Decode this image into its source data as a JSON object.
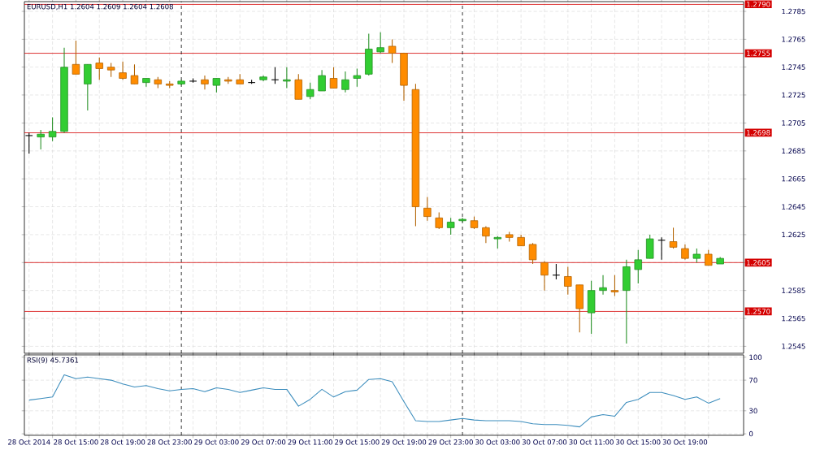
{
  "chart_data": [
    {
      "type": "candlestick",
      "title": "EURUSD,H1  1.2604 1.2609 1.2604 1.2608",
      "x": [
        "2014-10-28T11:00",
        "2014-10-28T12:00",
        "2014-10-28T13:00",
        "2014-10-28T14:00",
        "2014-10-28T15:00",
        "2014-10-28T16:00",
        "2014-10-28T17:00",
        "2014-10-28T18:00",
        "2014-10-28T19:00",
        "2014-10-28T20:00",
        "2014-10-28T21:00",
        "2014-10-28T22:00",
        "2014-10-28T23:00",
        "2014-10-29T00:00",
        "2014-10-29T01:00",
        "2014-10-29T02:00",
        "2014-10-29T03:00",
        "2014-10-29T04:00",
        "2014-10-29T05:00",
        "2014-10-29T06:00",
        "2014-10-29T07:00",
        "2014-10-29T08:00",
        "2014-10-29T09:00",
        "2014-10-29T10:00",
        "2014-10-29T11:00",
        "2014-10-29T12:00",
        "2014-10-29T13:00",
        "2014-10-29T14:00",
        "2014-10-29T15:00",
        "2014-10-29T16:00",
        "2014-10-29T17:00",
        "2014-10-29T18:00",
        "2014-10-29T19:00",
        "2014-10-29T20:00",
        "2014-10-29T21:00",
        "2014-10-29T22:00",
        "2014-10-29T23:00",
        "2014-10-30T00:00",
        "2014-10-30T01:00",
        "2014-10-30T02:00",
        "2014-10-30T03:00",
        "2014-10-30T04:00",
        "2014-10-30T05:00",
        "2014-10-30T06:00",
        "2014-10-30T07:00",
        "2014-10-30T08:00",
        "2014-10-30T09:00",
        "2014-10-30T10:00",
        "2014-10-30T11:00",
        "2014-10-30T12:00",
        "2014-10-30T13:00",
        "2014-10-30T14:00",
        "2014-10-30T15:00",
        "2014-10-30T16:00",
        "2014-10-30T17:00",
        "2014-10-30T18:00",
        "2014-10-30T19:00",
        "2014-10-30T20:00",
        "2014-10-30T21:00",
        "2014-10-30T22:00"
      ],
      "ohlc": [
        [
          1.2696,
          1.2698,
          1.2683,
          1.2696
        ],
        [
          1.2695,
          1.27,
          1.2686,
          1.2697
        ],
        [
          1.2695,
          1.2709,
          1.2692,
          1.2699
        ],
        [
          1.2699,
          1.2759,
          1.2698,
          1.2745
        ],
        [
          1.2747,
          1.2764,
          1.274,
          1.274
        ],
        [
          1.2733,
          1.2747,
          1.2714,
          1.2747
        ],
        [
          1.2748,
          1.2752,
          1.2736,
          1.2744
        ],
        [
          1.2745,
          1.2748,
          1.2738,
          1.2743
        ],
        [
          1.2741,
          1.2749,
          1.2736,
          1.2737
        ],
        [
          1.2739,
          1.2747,
          1.2733,
          1.2733
        ],
        [
          1.2734,
          1.2737,
          1.2731,
          1.2737
        ],
        [
          1.2736,
          1.2738,
          1.273,
          1.2733
        ],
        [
          1.2733,
          1.2735,
          1.273,
          1.2732
        ],
        [
          1.2733,
          1.2736,
          1.2732,
          1.2735
        ],
        [
          1.2735,
          1.2737,
          1.2734,
          1.2735
        ],
        [
          1.2736,
          1.2739,
          1.2729,
          1.2733
        ],
        [
          1.2732,
          1.2737,
          1.2727,
          1.2737
        ],
        [
          1.2736,
          1.2738,
          1.2733,
          1.2735
        ],
        [
          1.2736,
          1.274,
          1.2733,
          1.2733
        ],
        [
          1.2734,
          1.2736,
          1.2733,
          1.2734
        ],
        [
          1.2736,
          1.2739,
          1.2735,
          1.2738
        ],
        [
          1.2736,
          1.2745,
          1.2733,
          1.2736
        ],
        [
          1.2735,
          1.2745,
          1.273,
          1.2736
        ],
        [
          1.2736,
          1.274,
          1.2722,
          1.2722
        ],
        [
          1.2724,
          1.2734,
          1.2722,
          1.2729
        ],
        [
          1.2728,
          1.2743,
          1.2728,
          1.2739
        ],
        [
          1.2737,
          1.2745,
          1.273,
          1.273
        ],
        [
          1.2729,
          1.2742,
          1.2727,
          1.2736
        ],
        [
          1.2737,
          1.2744,
          1.2731,
          1.2739
        ],
        [
          1.274,
          1.2769,
          1.2739,
          1.2758
        ],
        [
          1.2756,
          1.277,
          1.2755,
          1.2759
        ],
        [
          1.276,
          1.2765,
          1.2748,
          1.2755
        ],
        [
          1.2755,
          1.2755,
          1.2721,
          1.2732
        ],
        [
          1.2729,
          1.2733,
          1.2631,
          1.2645
        ],
        [
          1.2644,
          1.2652,
          1.2635,
          1.2638
        ],
        [
          1.2637,
          1.2641,
          1.2629,
          1.263
        ],
        [
          1.263,
          1.2637,
          1.2625,
          1.2634
        ],
        [
          1.2635,
          1.2637,
          1.2634,
          1.2636
        ],
        [
          1.2635,
          1.2638,
          1.2629,
          1.263
        ],
        [
          1.263,
          1.2631,
          1.2619,
          1.2624
        ],
        [
          1.2622,
          1.2624,
          1.2615,
          1.2623
        ],
        [
          1.2625,
          1.2627,
          1.262,
          1.2623
        ],
        [
          1.2623,
          1.2625,
          1.2617,
          1.2617
        ],
        [
          1.2618,
          1.2619,
          1.2604,
          1.2607
        ],
        [
          1.2605,
          1.2606,
          1.2585,
          1.2596
        ],
        [
          1.2596,
          1.2604,
          1.2593,
          1.2596
        ],
        [
          1.2595,
          1.2602,
          1.2582,
          1.2588
        ],
        [
          1.2589,
          1.2589,
          1.2555,
          1.2572
        ],
        [
          1.2569,
          1.2592,
          1.2554,
          1.2585
        ],
        [
          1.2585,
          1.2596,
          1.2582,
          1.2587
        ],
        [
          1.2585,
          1.2596,
          1.2581,
          1.2584
        ],
        [
          1.2585,
          1.2607,
          1.2547,
          1.2602
        ],
        [
          1.26,
          1.2614,
          1.259,
          1.2607
        ],
        [
          1.2608,
          1.2625,
          1.2608,
          1.2622
        ],
        [
          1.2621,
          1.2623,
          1.2607,
          1.2621
        ],
        [
          1.262,
          1.263,
          1.2615,
          1.2616
        ],
        [
          1.2615,
          1.2618,
          1.2607,
          1.2608
        ],
        [
          1.2608,
          1.2615,
          1.2605,
          1.2611
        ],
        [
          1.2611,
          1.2614,
          1.2603,
          1.2603
        ],
        [
          1.2604,
          1.2609,
          1.2604,
          1.2608
        ]
      ],
      "colors": [
        "#000000",
        "#32cd32",
        "#32cd32",
        "#32cd32",
        "#ff8c00",
        "#32cd32",
        "#ff8c00",
        "#ff8c00",
        "#ff8c00",
        "#ff8c00",
        "#32cd32",
        "#ff8c00",
        "#ff8c00",
        "#32cd32",
        "#000000",
        "#ff8c00",
        "#32cd32",
        "#ff8c00",
        "#ff8c00",
        "#000000",
        "#32cd32",
        "#000000",
        "#32cd32",
        "#ff8c00",
        "#32cd32",
        "#32cd32",
        "#ff8c00",
        "#32cd32",
        "#32cd32",
        "#32cd32",
        "#32cd32",
        "#ff8c00",
        "#ff8c00",
        "#ff8c00",
        "#ff8c00",
        "#ff8c00",
        "#32cd32",
        "#32cd32",
        "#ff8c00",
        "#ff8c00",
        "#32cd32",
        "#ff8c00",
        "#ff8c00",
        "#ff8c00",
        "#ff8c00",
        "#000000",
        "#ff8c00",
        "#ff8c00",
        "#32cd32",
        "#32cd32",
        "#ff8c00",
        "#32cd32",
        "#32cd32",
        "#32cd32",
        "#000000",
        "#ff8c00",
        "#ff8c00",
        "#32cd32",
        "#ff8c00",
        "#32cd32"
      ],
      "xlim": [
        "2014-10-28T10:36",
        "2014-10-31T00:00"
      ],
      "xticks": [
        {
          "value": "2014-10-28T11:00",
          "label": null
        },
        {
          "value": "2014-10-28T13:00",
          "label": null
        },
        {
          "value": "2014-10-28T15:00",
          "label": null
        },
        {
          "value": "2014-10-28T17:00",
          "label": null
        },
        {
          "value": "2014-10-28T19:00",
          "label": null
        },
        {
          "value": "2014-10-28T21:00",
          "label": null
        },
        {
          "value": "2014-10-28T23:00",
          "label": null
        },
        {
          "value": "2014-10-29T01:00",
          "label": null
        },
        {
          "value": "2014-10-29T03:00",
          "label": null
        },
        {
          "value": "2014-10-29T05:00",
          "label": null
        },
        {
          "value": "2014-10-29T07:00",
          "label": null
        },
        {
          "value": "2014-10-29T09:00",
          "label": null
        },
        {
          "value": "2014-10-29T11:00",
          "label": null
        },
        {
          "value": "2014-10-29T13:00",
          "label": null
        },
        {
          "value": "2014-10-29T15:00",
          "label": null
        },
        {
          "value": "2014-10-29T17:00",
          "label": null
        },
        {
          "value": "2014-10-29T19:00",
          "label": null
        },
        {
          "value": "2014-10-29T21:00",
          "label": null
        },
        {
          "value": "2014-10-29T23:00",
          "label": null
        },
        {
          "value": "2014-10-30T01:00",
          "label": null
        },
        {
          "value": "2014-10-30T03:00",
          "label": null
        },
        {
          "value": "2014-10-30T05:00",
          "label": null
        },
        {
          "value": "2014-10-30T07:00",
          "label": null
        },
        {
          "value": "2014-10-30T09:00",
          "label": null
        },
        {
          "value": "2014-10-30T11:00",
          "label": null
        },
        {
          "value": "2014-10-30T13:00",
          "label": null
        },
        {
          "value": "2014-10-30T15:00",
          "label": null
        },
        {
          "value": "2014-10-30T17:00",
          "label": null
        },
        {
          "value": "2014-10-30T19:00",
          "label": null
        },
        {
          "value": "2014-10-30T21:00",
          "label": null
        }
      ],
      "ylim": [
        1.254,
        1.2792
      ],
      "yticks": [
        1.2545,
        1.2565,
        1.2585,
        {
          "value": 1.2605,
          "label": null
        },
        1.2625,
        1.2645,
        1.2665,
        1.2685,
        1.2705,
        1.2725,
        1.2745,
        1.2765,
        1.2785
      ],
      "grid": true,
      "tick_labels": "y",
      "ref_lines": [
        {
          "axis": "y",
          "value": 1.279,
          "label": "1.2790",
          "color": "#d40000"
        },
        {
          "axis": "y",
          "value": 1.2755,
          "label": "1.2755",
          "color": "#d40000"
        },
        {
          "axis": "y",
          "value": 1.2698,
          "label": "1.2698",
          "color": "#d40000"
        },
        {
          "axis": "y",
          "value": 1.2605,
          "label": "1.2605",
          "color": "#d40000"
        },
        {
          "axis": "y",
          "value": 1.257,
          "label": "1.2570",
          "color": "#d40000"
        },
        {
          "axis": "x",
          "value": "2014-10-29T00:00",
          "color": "#000000",
          "line_style": "dashed"
        },
        {
          "axis": "x",
          "value": "2014-10-30T00:00",
          "color": "#000000",
          "line_style": "dashed"
        }
      ]
    },
    {
      "type": "line",
      "title": "RSI(9) 45.7361",
      "x": [
        "2014-10-28T11:00",
        "2014-10-28T12:00",
        "2014-10-28T13:00",
        "2014-10-28T14:00",
        "2014-10-28T15:00",
        "2014-10-28T16:00",
        "2014-10-28T17:00",
        "2014-10-28T18:00",
        "2014-10-28T19:00",
        "2014-10-28T20:00",
        "2014-10-28T21:00",
        "2014-10-28T22:00",
        "2014-10-28T23:00",
        "2014-10-29T00:00",
        "2014-10-29T01:00",
        "2014-10-29T02:00",
        "2014-10-29T03:00",
        "2014-10-29T04:00",
        "2014-10-29T05:00",
        "2014-10-29T06:00",
        "2014-10-29T07:00",
        "2014-10-29T08:00",
        "2014-10-29T09:00",
        "2014-10-29T10:00",
        "2014-10-29T11:00",
        "2014-10-29T12:00",
        "2014-10-29T13:00",
        "2014-10-29T14:00",
        "2014-10-29T15:00",
        "2014-10-29T16:00",
        "2014-10-29T17:00",
        "2014-10-29T18:00",
        "2014-10-29T19:00",
        "2014-10-29T20:00",
        "2014-10-29T21:00",
        "2014-10-29T22:00",
        "2014-10-29T23:00",
        "2014-10-30T00:00",
        "2014-10-30T01:00",
        "2014-10-30T02:00",
        "2014-10-30T03:00",
        "2014-10-30T04:00",
        "2014-10-30T05:00",
        "2014-10-30T06:00",
        "2014-10-30T07:00",
        "2014-10-30T08:00",
        "2014-10-30T09:00",
        "2014-10-30T10:00",
        "2014-10-30T11:00",
        "2014-10-30T12:00",
        "2014-10-30T13:00",
        "2014-10-30T14:00",
        "2014-10-30T15:00",
        "2014-10-30T16:00",
        "2014-10-30T17:00",
        "2014-10-30T18:00",
        "2014-10-30T19:00",
        "2014-10-30T20:00",
        "2014-10-30T21:00",
        "2014-10-30T22:00"
      ],
      "series": [
        {
          "color": "#3c8dbd",
          "values": [
            44,
            46,
            48,
            77,
            72,
            74,
            72,
            70,
            65,
            61,
            63,
            59,
            56,
            58,
            59,
            55,
            60,
            58,
            54,
            57,
            60,
            58,
            58,
            36,
            45,
            58,
            48,
            55,
            57,
            71,
            72,
            68,
            42,
            17,
            16,
            16,
            18,
            20,
            18,
            17,
            17,
            17,
            16,
            13,
            12,
            12,
            11,
            9,
            22,
            25,
            23,
            41,
            45,
            54,
            54,
            50,
            45,
            48,
            40,
            46
          ]
        }
      ],
      "xlim": [
        "2014-10-28T10:36",
        "2014-10-31T00:00"
      ],
      "xticks": [
        {
          "value": "2014-10-28T11:00",
          "label": "28 Oct 2014"
        },
        {
          "value": "2014-10-28T13:00",
          "label": null
        },
        {
          "value": "2014-10-28T15:00",
          "label": "28 Oct 15:00"
        },
        {
          "value": "2014-10-28T17:00",
          "label": null
        },
        {
          "value": "2014-10-28T19:00",
          "label": "28 Oct 19:00"
        },
        {
          "value": "2014-10-28T21:00",
          "label": null
        },
        {
          "value": "2014-10-28T23:00",
          "label": "28 Oct 23:00"
        },
        {
          "value": "2014-10-29T01:00",
          "label": null
        },
        {
          "value": "2014-10-29T03:00",
          "label": "29 Oct 03:00"
        },
        {
          "value": "2014-10-29T05:00",
          "label": null
        },
        {
          "value": "2014-10-29T07:00",
          "label": "29 Oct 07:00"
        },
        {
          "value": "2014-10-29T09:00",
          "label": null
        },
        {
          "value": "2014-10-29T11:00",
          "label": "29 Oct 11:00"
        },
        {
          "value": "2014-10-29T13:00",
          "label": null
        },
        {
          "value": "2014-10-29T15:00",
          "label": "29 Oct 15:00"
        },
        {
          "value": "2014-10-29T17:00",
          "label": null
        },
        {
          "value": "2014-10-29T19:00",
          "label": "29 Oct 19:00"
        },
        {
          "value": "2014-10-29T21:00",
          "label": null
        },
        {
          "value": "2014-10-29T23:00",
          "label": "29 Oct 23:00"
        },
        {
          "value": "2014-10-30T01:00",
          "label": null
        },
        {
          "value": "2014-10-30T03:00",
          "label": "30 Oct 03:00"
        },
        {
          "value": "2014-10-30T05:00",
          "label": null
        },
        {
          "value": "2014-10-30T07:00",
          "label": "30 Oct 07:00"
        },
        {
          "value": "2014-10-30T09:00",
          "label": null
        },
        {
          "value": "2014-10-30T11:00",
          "label": "30 Oct 11:00"
        },
        {
          "value": "2014-10-30T13:00",
          "label": null
        },
        {
          "value": "2014-10-30T15:00",
          "label": "30 Oct 15:00"
        },
        {
          "value": "2014-10-30T17:00",
          "label": null
        },
        {
          "value": "2014-10-30T19:00",
          "label": "30 Oct 19:00"
        },
        {
          "value": "2014-10-30T21:00",
          "label": null
        }
      ],
      "ylim": [
        -2,
        103
      ],
      "yticks": [
        0,
        30,
        70,
        100
      ],
      "grid": true,
      "ref_lines": [
        {
          "axis": "x",
          "value": "2014-10-29T00:00",
          "color": "#000000",
          "line_style": "dashed"
        },
        {
          "axis": "x",
          "value": "2014-10-30T00:00",
          "color": "#000000",
          "line_style": "dashed"
        }
      ]
    }
  ]
}
